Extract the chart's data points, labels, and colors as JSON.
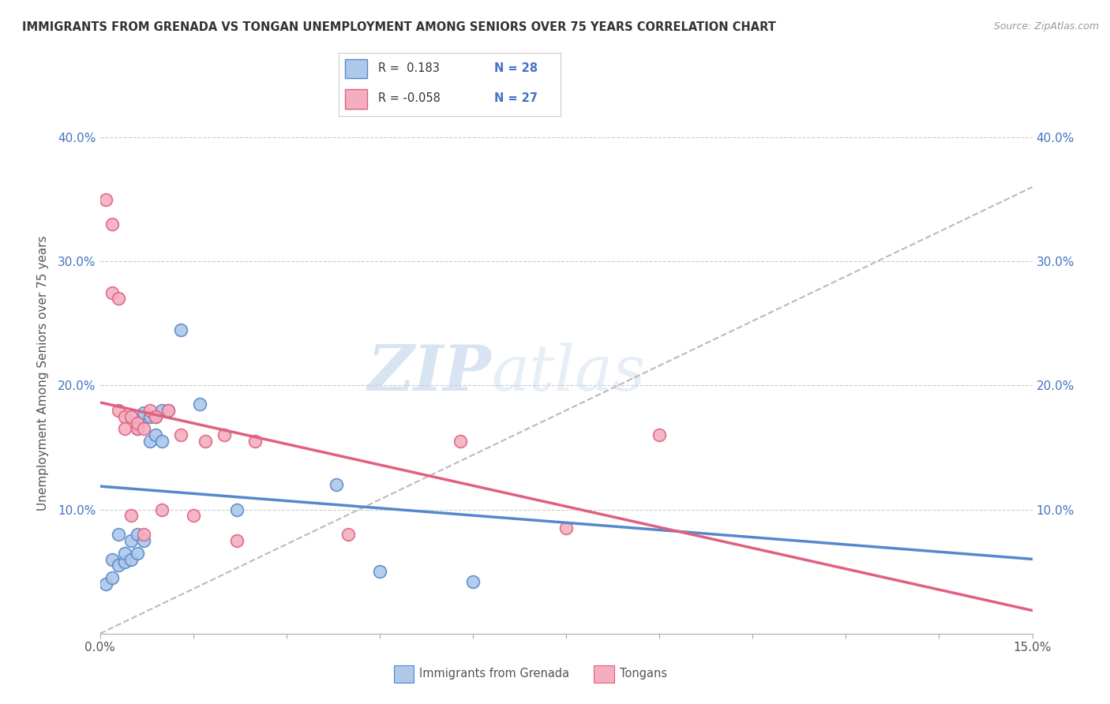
{
  "title": "IMMIGRANTS FROM GRENADA VS TONGAN UNEMPLOYMENT AMONG SENIORS OVER 75 YEARS CORRELATION CHART",
  "source": "Source: ZipAtlas.com",
  "ylabel": "Unemployment Among Seniors over 75 years",
  "xlim": [
    0.0,
    0.15
  ],
  "ylim": [
    0.0,
    0.42
  ],
  "watermark_zip": "ZIP",
  "watermark_atlas": "atlas",
  "color_blue": "#adc8e8",
  "color_pink": "#f4aec0",
  "line_blue": "#5588cc",
  "line_pink": "#e06080",
  "line_dashed": "#bbbbbb",
  "background_color": "#ffffff",
  "grid_color": "#cccccc",
  "tick_color_y": "#4472C4",
  "tick_color_x": "#555555",
  "grenada_x": [
    0.001,
    0.002,
    0.002,
    0.003,
    0.003,
    0.004,
    0.004,
    0.005,
    0.005,
    0.006,
    0.006,
    0.006,
    0.007,
    0.007,
    0.007,
    0.008,
    0.008,
    0.009,
    0.009,
    0.01,
    0.01,
    0.011,
    0.013,
    0.016,
    0.022,
    0.038,
    0.045,
    0.06
  ],
  "grenada_y": [
    0.04,
    0.045,
    0.06,
    0.055,
    0.08,
    0.058,
    0.065,
    0.06,
    0.075,
    0.065,
    0.08,
    0.165,
    0.075,
    0.175,
    0.178,
    0.155,
    0.175,
    0.16,
    0.175,
    0.155,
    0.18,
    0.18,
    0.245,
    0.185,
    0.1,
    0.12,
    0.05,
    0.042
  ],
  "tongan_x": [
    0.001,
    0.002,
    0.002,
    0.003,
    0.003,
    0.004,
    0.004,
    0.005,
    0.005,
    0.006,
    0.006,
    0.007,
    0.007,
    0.008,
    0.009,
    0.01,
    0.011,
    0.013,
    0.015,
    0.017,
    0.02,
    0.022,
    0.025,
    0.04,
    0.058,
    0.075,
    0.09
  ],
  "tongan_y": [
    0.35,
    0.33,
    0.275,
    0.27,
    0.18,
    0.175,
    0.165,
    0.175,
    0.095,
    0.165,
    0.17,
    0.165,
    0.08,
    0.18,
    0.175,
    0.1,
    0.18,
    0.16,
    0.095,
    0.155,
    0.16,
    0.075,
    0.155,
    0.08,
    0.155,
    0.085,
    0.16
  ]
}
